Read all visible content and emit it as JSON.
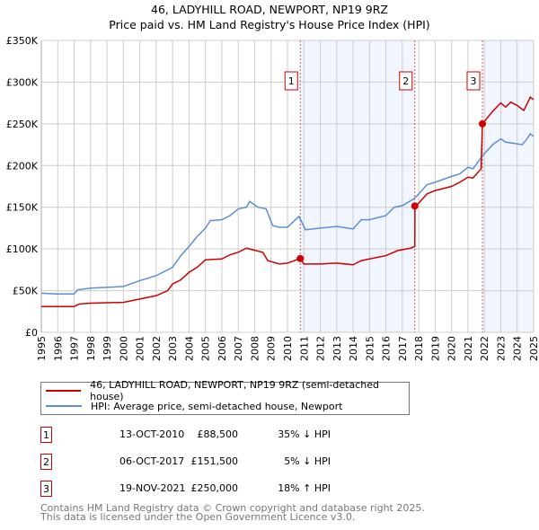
{
  "chart_data": {
    "type": "line",
    "title": "46, LADYHILL ROAD, NEWPORT, NP19 9RZ",
    "subtitle": "Price paid vs. HM Land Registry's House Price Index (HPI)",
    "xlim": [
      1995,
      2025
    ],
    "ylim": [
      0,
      350000
    ],
    "y_ticks": [
      {
        "v": 0,
        "label": "£0"
      },
      {
        "v": 50000,
        "label": "£50K"
      },
      {
        "v": 100000,
        "label": "£100K"
      },
      {
        "v": 150000,
        "label": "£150K"
      },
      {
        "v": 200000,
        "label": "£200K"
      },
      {
        "v": 250000,
        "label": "£250K"
      },
      {
        "v": 300000,
        "label": "£300K"
      },
      {
        "v": 350000,
        "label": "£350K"
      }
    ],
    "x_ticks": [
      "1995",
      "1996",
      "1997",
      "1998",
      "1999",
      "2000",
      "2001",
      "2002",
      "2003",
      "2004",
      "2005",
      "2006",
      "2007",
      "2008",
      "2009",
      "2010",
      "2011",
      "2012",
      "2013",
      "2014",
      "2015",
      "2016",
      "2017",
      "2018",
      "2019",
      "2020",
      "2021",
      "2022",
      "2023",
      "2024",
      "2025"
    ],
    "grid": true,
    "series": [
      {
        "name": "46, LADYHILL ROAD, NEWPORT, NP19 9RZ (semi-detached house)",
        "color": "#cc0000",
        "x": [
          1995,
          1997,
          1997.3,
          1998,
          2000,
          2001,
          2002,
          2002.7,
          2003,
          2003.5,
          2004,
          2004.5,
          2005,
          2006,
          2006.5,
          2007,
          2007.5,
          2008.5,
          2008.8,
          2009.5,
          2010,
          2010.78,
          2011,
          2012,
          2013,
          2014,
          2014.5,
          2015,
          2016,
          2016.7,
          2017.5,
          2017.76,
          2017.77,
          2018,
          2018.5,
          2019,
          2020,
          2020.5,
          2021,
          2021.3,
          2021.8,
          2021.88,
          2022.5,
          2023,
          2023.3,
          2023.6,
          2024,
          2024.4,
          2024.8,
          2025
        ],
        "y": [
          31000,
          31000,
          34000,
          35000,
          36000,
          40000,
          44000,
          50000,
          58000,
          63000,
          72000,
          78000,
          87000,
          88000,
          93000,
          96000,
          101000,
          96000,
          86000,
          82000,
          83000,
          88500,
          82000,
          82000,
          83000,
          81000,
          86000,
          88000,
          92000,
          98000,
          101000,
          103000,
          151500,
          155000,
          166000,
          170000,
          175000,
          180000,
          186000,
          185000,
          196000,
          250000,
          265000,
          275000,
          270000,
          276000,
          272000,
          266000,
          282000,
          279000
        ]
      },
      {
        "name": "HPI: Average price, semi-detached house, Newport",
        "color": "#5b8fd4",
        "x": [
          1995,
          1996,
          1997,
          1997.2,
          1998,
          1999,
          2000,
          2001,
          2002,
          2003,
          2003.5,
          2004,
          2004.5,
          2005,
          2005.3,
          2006,
          2006.5,
          2007,
          2007.5,
          2007.7,
          2008.2,
          2008.7,
          2009.1,
          2009.5,
          2010,
          2010.7,
          2011.1,
          2012,
          2013,
          2014,
          2014.5,
          2015,
          2016,
          2016.5,
          2017,
          2017.7,
          2018,
          2018.5,
          2019,
          2020,
          2020.5,
          2021,
          2021.3,
          2021.9,
          2022.5,
          2023,
          2023.3,
          2024,
          2024.3,
          2024.6,
          2024.8,
          2025
        ],
        "y": [
          47000,
          46000,
          46000,
          51000,
          53000,
          54000,
          55000,
          62000,
          68000,
          78000,
          92000,
          103000,
          115000,
          125000,
          134000,
          135000,
          140000,
          148000,
          150000,
          157000,
          150000,
          148000,
          128000,
          126000,
          126000,
          139000,
          123000,
          125000,
          127000,
          124000,
          135000,
          135000,
          140000,
          150000,
          152000,
          160000,
          166000,
          177000,
          180000,
          187000,
          190000,
          198000,
          196000,
          212000,
          225000,
          232000,
          228000,
          226000,
          225000,
          232000,
          238000,
          235000
        ]
      }
    ],
    "sales": [
      {
        "n": "1",
        "x": 2010.78,
        "y": 88500,
        "date": "13-OCT-2010",
        "price": "£88,500",
        "hpi": "35% ↓ HPI"
      },
      {
        "n": "2",
        "x": 2017.76,
        "y": 151500,
        "date": "06-OCT-2017",
        "price": "£151,500",
        "hpi": "5% ↓ HPI"
      },
      {
        "n": "3",
        "x": 2021.88,
        "y": 250000,
        "date": "19-NOV-2021",
        "price": "£250,000",
        "hpi": "18% ↑ HPI"
      }
    ],
    "shaded_ranges": [
      [
        2010.78,
        2017.76
      ],
      [
        2021.88,
        2025
      ]
    ],
    "legend_placement": "below"
  },
  "footer": {
    "line1": "Contains HM Land Registry data © Crown copyright and database right 2025.",
    "line2": "This data is licensed under the Open Government Licence v3.0."
  }
}
